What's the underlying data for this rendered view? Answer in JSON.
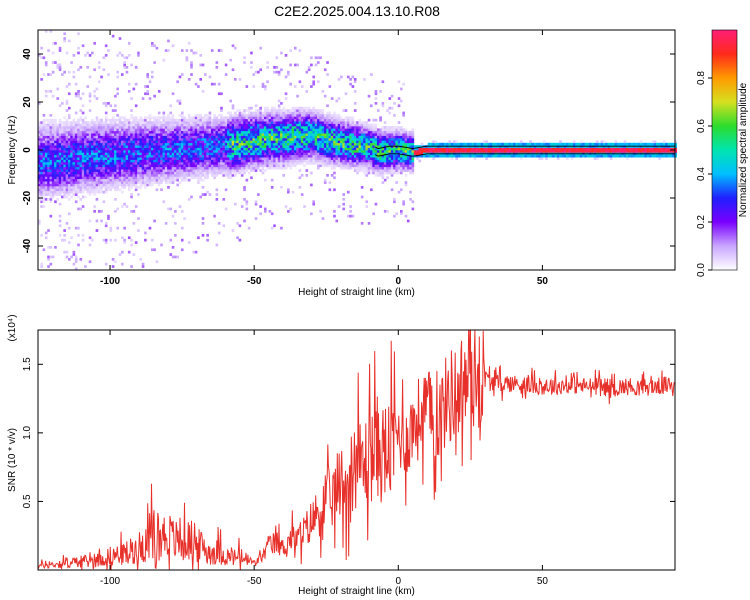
{
  "title": "C2E2.2025.004.13.10.R08",
  "colors": {
    "snr_line": "#e8302a",
    "trace_line": "#000000",
    "colormap": [
      "#ffffff",
      "#c9a6ff",
      "#7a00ff",
      "#1f1fff",
      "#00bfff",
      "#00e5b0",
      "#2ddc2d",
      "#d6e020",
      "#ff9a00",
      "#ff2a1a",
      "#ff1e78"
    ]
  },
  "chart_data": [
    {
      "type": "heatmap",
      "xlabel": "Height of straight line (km)",
      "ylabel": "Frequency (Hz)",
      "xlim": [
        -125,
        96
      ],
      "ylim": [
        -50,
        50
      ],
      "xticks": [
        "-100",
        "-50",
        "0",
        "50"
      ],
      "xtick_values": [
        -100,
        -50,
        0,
        50
      ],
      "yticks": [
        "-40",
        "-20",
        "0",
        "20",
        "40"
      ],
      "ytick_values": [
        -40,
        -20,
        0,
        20,
        40
      ],
      "grid": false,
      "colorbar": {
        "label": "Normalized spectral amplitude",
        "range": [
          0,
          1
        ],
        "ticks": [
          "0.0",
          "0.2",
          "0.4",
          "0.6",
          "0.8"
        ],
        "tick_values": [
          0.0,
          0.2,
          0.4,
          0.6,
          0.8
        ]
      },
      "center_frequency": {
        "x": [
          -125,
          -110,
          -100,
          -90,
          -80,
          -70,
          -60,
          -55,
          -50,
          -45,
          -40,
          -35,
          -30,
          -27,
          -24,
          -20,
          -15,
          -10,
          -7,
          -3,
          0,
          5,
          10,
          15,
          20,
          30,
          40,
          50,
          60,
          70,
          80,
          96
        ],
        "y": [
          -5,
          -3,
          -2,
          -1,
          0,
          1,
          2,
          3,
          4,
          5,
          5,
          6,
          6,
          5,
          4,
          3,
          2,
          1,
          -1,
          0,
          0,
          -1,
          0,
          0,
          0,
          0,
          0,
          0,
          0,
          0,
          0,
          0
        ]
      }
    },
    {
      "type": "line",
      "xlabel": "Height of straight line (km)",
      "ylabel": "SNR (10 * v/v)",
      "y_multiplier": "(x10⁴)",
      "xlim": [
        -125,
        96
      ],
      "ylim": [
        0,
        17500
      ],
      "xticks": [
        "-100",
        "-50",
        "0",
        "50"
      ],
      "xtick_values": [
        -100,
        -50,
        0,
        50
      ],
      "yticks": [
        "0.5",
        "1.0",
        "1.5"
      ],
      "ytick_values": [
        5000,
        10000,
        15000
      ],
      "grid": false,
      "series": [
        {
          "x": [
            -125,
            -120,
            -115,
            -110,
            -105,
            -100,
            -95,
            -90,
            -87,
            -85,
            -83,
            -80,
            -78,
            -75,
            -72,
            -70,
            -67,
            -65,
            -62,
            -60,
            -57,
            -55,
            -52,
            -50,
            -47,
            -45,
            -42,
            -40,
            -37,
            -35,
            -32,
            -30,
            -28,
            -25,
            -23,
            -20,
            -18,
            -15,
            -12,
            -10,
            -8,
            -5,
            -2,
            0,
            3,
            5,
            7,
            10,
            12,
            15,
            17,
            20,
            22,
            25,
            27,
            30,
            32,
            35,
            40,
            45,
            50,
            55,
            60,
            65,
            70,
            75,
            80,
            85,
            90,
            96
          ],
          "y": [
            300,
            400,
            500,
            600,
            700,
            1000,
            1200,
            1600,
            2200,
            2800,
            2400,
            2600,
            2200,
            2000,
            2200,
            1800,
            1600,
            1200,
            1400,
            1000,
            900,
            1000,
            700,
            500,
            1000,
            1800,
            2000,
            1600,
            2400,
            2200,
            3000,
            3600,
            4200,
            4800,
            5200,
            6500,
            6000,
            8000,
            7500,
            8500,
            9000,
            8500,
            9000,
            10000,
            9500,
            10500,
            11000,
            12000,
            10500,
            11500,
            12500,
            13000,
            13500,
            14000,
            14200,
            14000,
            13800,
            13600,
            13600,
            13500,
            13400,
            13400,
            13500,
            13400,
            13400,
            13300,
            13400,
            13300,
            13400,
            13500
          ]
        }
      ]
    }
  ]
}
